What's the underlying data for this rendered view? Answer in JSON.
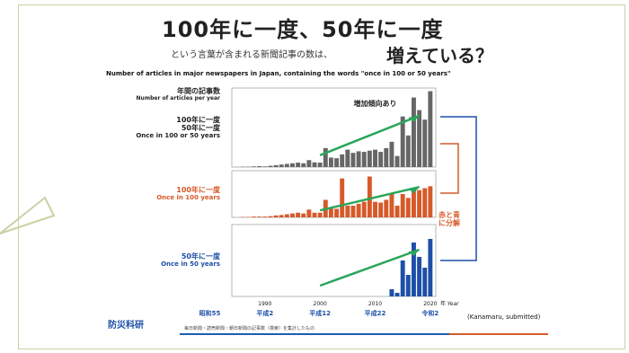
{
  "title_main": "100年に一度、50年に一度",
  "subtitle_small": "という言葉が含まれる新聞記事の数は、",
  "subtitle_big": "増えている？",
  "caption": "Number of articles in major newspapers in Japan, containing the words \"once in 100 or 50 years\"",
  "labels": {
    "articles_jp": "年間の記事数",
    "articles_en": "Number of articles per year",
    "combo_jp1": "100年に一度",
    "combo_jp2": "50年に一度",
    "combo_en": "Once in 100 or 50 years",
    "hundred_jp": "100年に一度",
    "hundred_en": "Once in 100 years",
    "fifty_jp": "50年に一度",
    "fifty_en": "Once in 50 years",
    "split_jp": "赤と青に分解",
    "reference": "(Kanamaru, submitted)",
    "institute": "防災科研",
    "footnote": "毎日新聞・読売新聞・朝日新聞の記事数（検索）を集計したもの"
  },
  "chart_data": [
    {
      "type": "bar",
      "name_annotation": "増加傾向あり",
      "x": [
        1986,
        1987,
        1988,
        1989,
        1990,
        1991,
        1992,
        1993,
        1994,
        1995,
        1996,
        1997,
        1998,
        1999,
        2000,
        2001,
        2002,
        2003,
        2004,
        2005,
        2006,
        2007,
        2008,
        2009,
        2010,
        2011,
        2012,
        2013,
        2014,
        2015,
        2016,
        2017,
        2018,
        2019,
        2020
      ],
      "values": [
        1,
        1,
        2,
        3,
        2,
        4,
        6,
        8,
        10,
        12,
        14,
        12,
        22,
        15,
        14,
        60,
        30,
        28,
        40,
        55,
        45,
        50,
        48,
        52,
        55,
        48,
        60,
        80,
        35,
        160,
        100,
        220,
        180,
        150,
        240
      ],
      "ylim": [
        0,
        250
      ],
      "color": "#666666"
    },
    {
      "type": "bar",
      "x": [
        1986,
        1987,
        1988,
        1989,
        1990,
        1991,
        1992,
        1993,
        1994,
        1995,
        1996,
        1997,
        1998,
        1999,
        2000,
        2001,
        2002,
        2003,
        2004,
        2005,
        2006,
        2007,
        2008,
        2009,
        2010,
        2011,
        2012,
        2013,
        2014,
        2015,
        2016,
        2017,
        2018,
        2019,
        2020
      ],
      "values": [
        1,
        1,
        2,
        2,
        2,
        3,
        5,
        6,
        8,
        10,
        12,
        10,
        20,
        12,
        12,
        45,
        25,
        22,
        100,
        30,
        30,
        35,
        40,
        105,
        40,
        38,
        45,
        60,
        30,
        60,
        50,
        70,
        70,
        75,
        80
      ],
      "ylim": [
        0,
        120
      ],
      "color": "#d65a2a"
    },
    {
      "type": "bar",
      "x": [
        1986,
        1987,
        1988,
        1989,
        1990,
        1991,
        1992,
        1993,
        1994,
        1995,
        1996,
        1997,
        1998,
        1999,
        2000,
        2001,
        2002,
        2003,
        2004,
        2005,
        2006,
        2007,
        2008,
        2009,
        2010,
        2011,
        2012,
        2013,
        2014,
        2015,
        2016,
        2017,
        2018,
        2019,
        2020
      ],
      "values": [
        0,
        0,
        0,
        0,
        0,
        0,
        0,
        0,
        0,
        0,
        0,
        0,
        0,
        0,
        0,
        0,
        0,
        0,
        0,
        0,
        0,
        0,
        0,
        0,
        0,
        0,
        0,
        20,
        10,
        100,
        60,
        150,
        110,
        80,
        160
      ],
      "ylim": [
        0,
        200
      ],
      "color": "#1d4fa8"
    }
  ],
  "x_ticks": [
    "1990",
    "2000",
    "2010",
    "2020"
  ],
  "x_era": [
    "昭和55",
    "平成2",
    "平成12",
    "平成22",
    "令和2"
  ],
  "year_label": "年 Year"
}
